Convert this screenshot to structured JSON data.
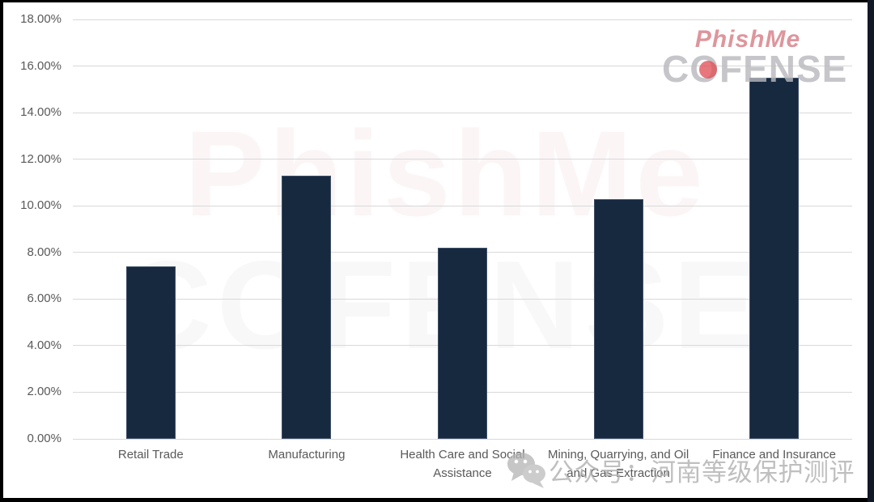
{
  "logo": {
    "phishme": "PhishMe",
    "cofense": "COFENSE",
    "phishme_color": "#c94f5c",
    "cofense_color": "#b9b9bd",
    "dot_color": "#e04a52"
  },
  "watermarks": {
    "center_line1": "PhishMe",
    "center_line2": "COFENSE",
    "wechat_text": "公众号：河南等级保护测评",
    "wechat_icon": "wechat-icon"
  },
  "chart_data": {
    "type": "bar",
    "title": "",
    "xlabel": "",
    "ylabel": "",
    "categories": [
      "Retail Trade",
      "Manufacturing",
      "Health Care and Social Assistance",
      "Mining, Quarrying, and Oil and Gas Extraction",
      "Finance and Insurance"
    ],
    "values": [
      7.4,
      11.3,
      8.2,
      10.3,
      15.5
    ],
    "unit": "%",
    "ylim": [
      0,
      18
    ],
    "ytick_labels": [
      "0.00%",
      "2.00%",
      "4.00%",
      "6.00%",
      "8.00%",
      "10.00%",
      "12.00%",
      "14.00%",
      "16.00%",
      "18.00%"
    ],
    "grid": true,
    "legend": "none",
    "colors": {
      "bar": "#17293f",
      "bar_border": "#3f5068",
      "gridline": "#d9d9d9",
      "axis_text": "#595959"
    }
  }
}
